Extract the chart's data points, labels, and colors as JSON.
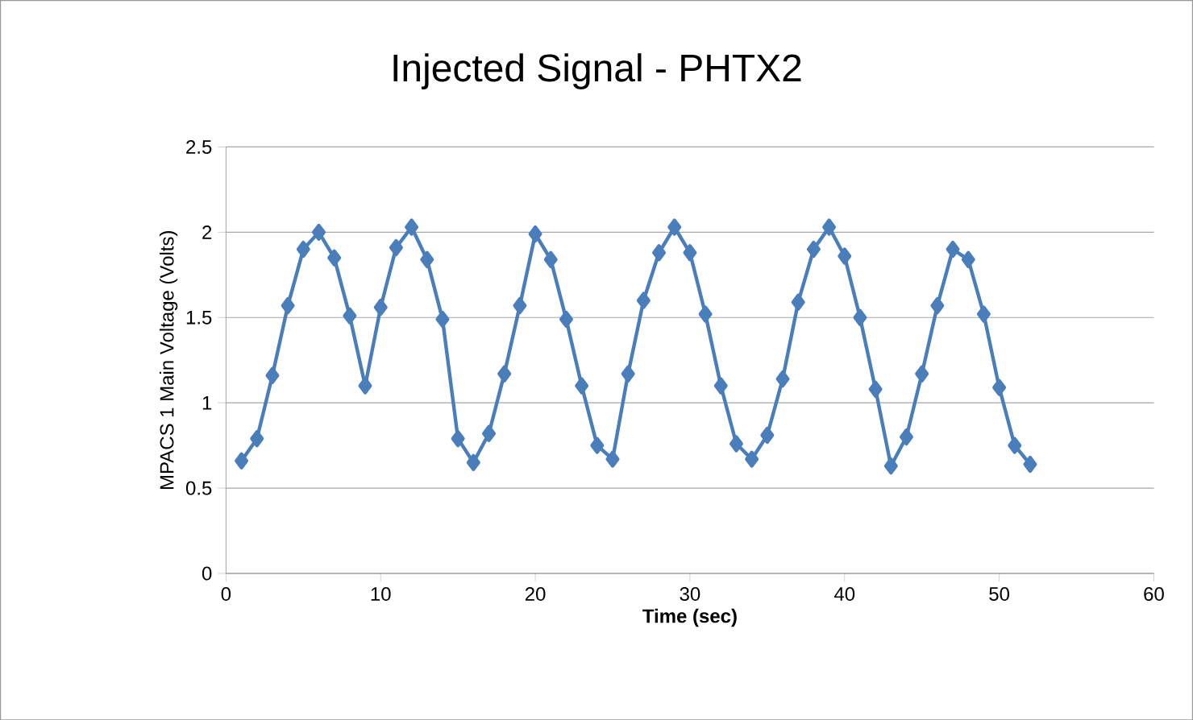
{
  "chart_data": {
    "type": "line",
    "title": "Injected Signal - PHTX2",
    "xlabel": "Time (sec)",
    "ylabel": "MPACS 1 Main Voltage (Volts)",
    "x": [
      1,
      2,
      3,
      4,
      5,
      6,
      7,
      8,
      9,
      10,
      11,
      12,
      13,
      14,
      15,
      16,
      17,
      18,
      19,
      20,
      21,
      22,
      23,
      24,
      25,
      26,
      27,
      28,
      29,
      30,
      31,
      32,
      33,
      34,
      35,
      36,
      37,
      38,
      39,
      40,
      41,
      42,
      43,
      44,
      45,
      46,
      47,
      48,
      49,
      50,
      51,
      52
    ],
    "series": [
      {
        "color": "#4a7ebb",
        "values": [
          0.66,
          0.79,
          1.16,
          1.57,
          1.9,
          2.0,
          1.85,
          1.51,
          1.1,
          1.56,
          1.91,
          2.03,
          1.84,
          1.49,
          0.79,
          0.65,
          0.82,
          1.17,
          1.57,
          1.99,
          1.84,
          1.49,
          1.1,
          0.75,
          0.67,
          1.17,
          1.6,
          1.88,
          2.03,
          1.88,
          1.52,
          1.1,
          0.76,
          0.67,
          0.81,
          1.14,
          1.59,
          1.9,
          2.03,
          1.86,
          1.5,
          1.08,
          0.63,
          0.8,
          1.17,
          1.57,
          1.9,
          1.84,
          1.52,
          1.09,
          0.75,
          0.64
        ]
      }
    ],
    "xlim": [
      0,
      60
    ],
    "xticks": [
      0,
      10,
      20,
      30,
      40,
      50,
      60
    ],
    "ylim": [
      0,
      2.5
    ],
    "yticks": [
      0,
      0.5,
      1,
      1.5,
      2,
      2.5
    ],
    "grid": "y",
    "marker": "diamond",
    "line_style": "solid"
  }
}
